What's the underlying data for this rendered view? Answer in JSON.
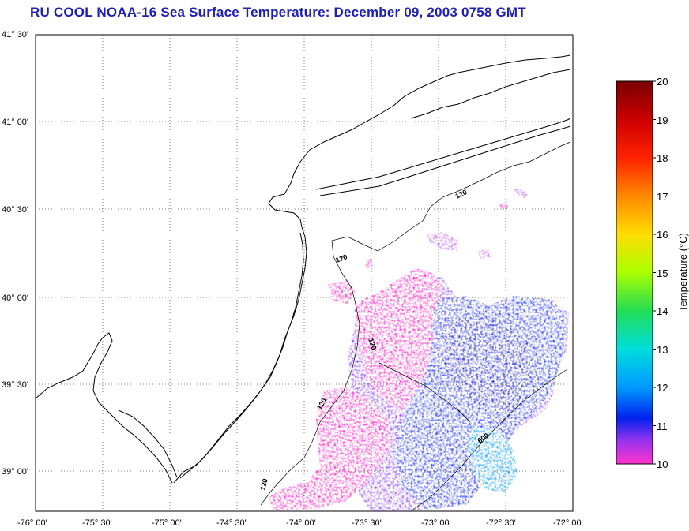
{
  "title": "RU COOL  NOAA-16  Sea Surface Temperature:  December 09, 2003 0758 GMT",
  "map": {
    "lat_ticks": [
      "41° 30'",
      "41° 00'",
      "40° 30'",
      "40° 00'",
      "39° 30'",
      "39° 00'"
    ],
    "lon_ticks": [
      "-76° 00'",
      "-75° 30'",
      "-75° 00'",
      "-74° 30'",
      "-74° 00'",
      "-73° 30'",
      "-73° 00'",
      "-72° 30'",
      "-72° 00'"
    ],
    "lat_range": [
      38.72,
      41.5
    ],
    "lon_range": [
      -76.0,
      -72.0
    ],
    "contour_labels": [
      "120",
      "120",
      "120",
      "120",
      "120",
      "600"
    ],
    "sst_colors": {
      "warm_magenta": "#ff33cc",
      "violet": "#9933ff",
      "blue": "#3344ff",
      "deep_blue": "#2222dd",
      "cyan_blue": "#22aaff"
    }
  },
  "colorbar": {
    "title": "Temperature (°C)",
    "ticks": [
      "20",
      "19",
      "18",
      "17",
      "16",
      "15",
      "14",
      "13",
      "12",
      "11",
      "10"
    ],
    "stops": [
      "#7a0000",
      "#cc0000",
      "#ff2200",
      "#ff8800",
      "#ffdd00",
      "#aaff00",
      "#22dd55",
      "#00dddd",
      "#0099ff",
      "#0022ee",
      "#9933ee",
      "#ff33cc"
    ]
  }
}
